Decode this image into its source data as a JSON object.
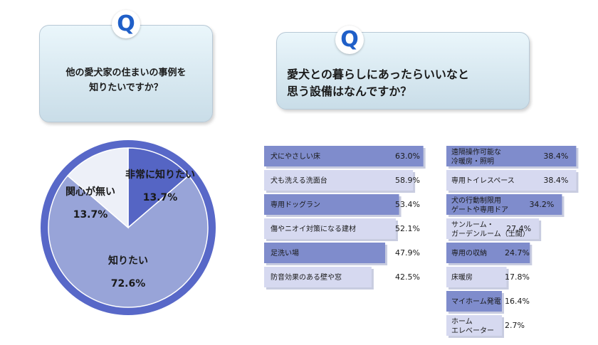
{
  "questions": {
    "left": {
      "badge": "Q",
      "text": "他の愛犬家の住まいの事例を\n知りたいですか？"
    },
    "right": {
      "badge": "Q",
      "text": "愛犬との暮らしにあったらいいなと\n思う設備はなんですか？"
    }
  },
  "colors": {
    "bar_dark": "#7f8ccc",
    "bar_light": "#d6d9f0",
    "pie_border": "#5868c8",
    "pie_main": "#98a4d8",
    "pie_dark": "#5565c4",
    "pie_light": "#edf0f8"
  },
  "chart_data": [
    {
      "type": "pie",
      "slices": [
        {
          "label": "知りたい",
          "value": 72.6,
          "value_text": "72.6%"
        },
        {
          "label": "非常に知りたい",
          "value": 13.7,
          "value_text": "13.7%"
        },
        {
          "label": "関心が無い",
          "value": 13.7,
          "value_text": "13.7%"
        }
      ]
    },
    {
      "type": "bar",
      "orientation": "horizontal",
      "xlim": [
        0,
        100
      ],
      "categories": [
        "犬にやさしい床",
        "犬も洗える洗面台",
        "専用ドッグラン",
        "傷やニオイ対策になる建材",
        "足洗い場",
        "防音効果のある壁や窓"
      ],
      "values": [
        63.0,
        58.9,
        53.4,
        52.1,
        47.9,
        42.5
      ],
      "value_labels": [
        "63.0%",
        "58.9%",
        "53.4%",
        "52.1%",
        "47.9%",
        "42.5%"
      ]
    },
    {
      "type": "bar",
      "orientation": "horizontal",
      "xlim": [
        0,
        100
      ],
      "categories": [
        "遠隔操作可能な\n冷暖房・照明",
        "専用トイレスペース",
        "犬の行動制限用\nゲートや専用ドア",
        "サンルーム・\nガーデンルーム（土間）",
        "専用の収納",
        "床暖房",
        "マイホーム発電",
        "ホーム\nエレベーター"
      ],
      "values": [
        38.4,
        38.4,
        34.2,
        27.4,
        24.7,
        17.8,
        16.4,
        2.7
      ],
      "value_labels": [
        "38.4%",
        "38.4%",
        "34.2%",
        "27.4%",
        "24.7%",
        "17.8%",
        "16.4%",
        "2.7%"
      ]
    }
  ]
}
